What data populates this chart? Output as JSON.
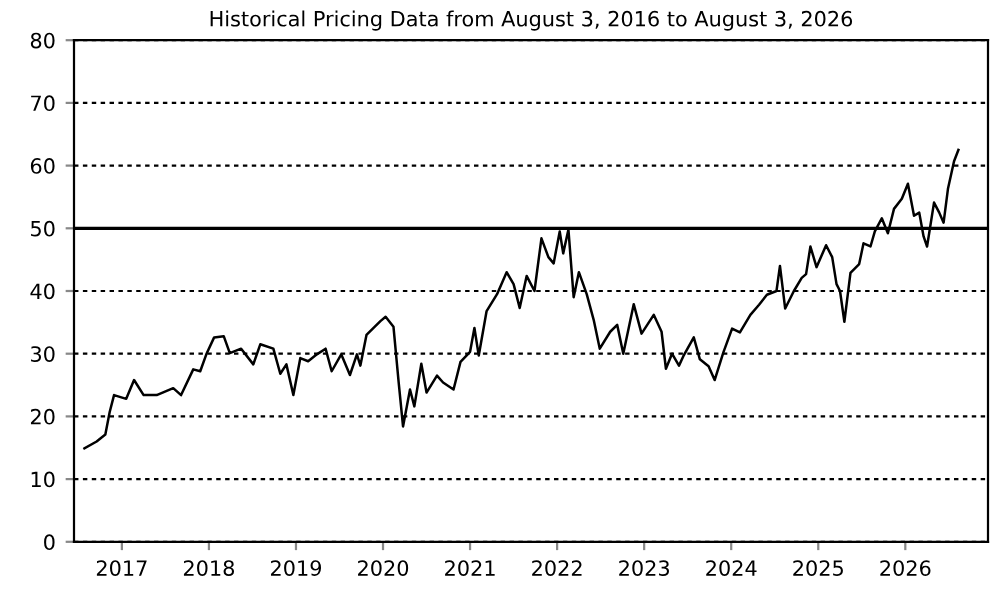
{
  "chart_data": {
    "type": "line",
    "title": "Historical Pricing Data from August 3, 2016 to August 3, 2026",
    "series": [
      {
        "color": "#000000",
        "x": [
          2016.57,
          2016.71,
          2016.81,
          2016.86,
          2016.91,
          2017.05,
          2017.14,
          2017.25,
          2017.4,
          2017.59,
          2017.68,
          2017.82,
          2017.9,
          2017.97,
          2018.06,
          2018.17,
          2018.24,
          2018.37,
          2018.51,
          2018.59,
          2018.74,
          2018.82,
          2018.89,
          2018.97,
          2019.05,
          2019.14,
          2019.24,
          2019.34,
          2019.41,
          2019.52,
          2019.62,
          2019.7,
          2019.74,
          2019.81,
          2019.97,
          2020.03,
          2020.12,
          2020.18,
          2020.23,
          2020.31,
          2020.36,
          2020.44,
          2020.5,
          2020.62,
          2020.69,
          2020.81,
          2020.89,
          2021.0,
          2021.05,
          2021.1,
          2021.19,
          2021.31,
          2021.42,
          2021.5,
          2021.57,
          2021.65,
          2021.74,
          2021.82,
          2021.9,
          2021.96,
          2022.03,
          2022.07,
          2022.13,
          2022.19,
          2022.25,
          2022.34,
          2022.42,
          2022.49,
          2022.61,
          2022.69,
          2022.76,
          2022.88,
          2022.97,
          2023.11,
          2023.2,
          2023.25,
          2023.32,
          2023.4,
          2023.45,
          2023.57,
          2023.64,
          2023.74,
          2023.81,
          2023.91,
          2024.01,
          2024.1,
          2024.22,
          2024.32,
          2024.41,
          2024.52,
          2024.56,
          2024.62,
          2024.72,
          2024.81,
          2024.86,
          2024.91,
          2024.98,
          2025.09,
          2025.16,
          2025.21,
          2025.25,
          2025.3,
          2025.37,
          2025.47,
          2025.52,
          2025.6,
          2025.65,
          2025.73,
          2025.8,
          2025.87,
          2025.96,
          2026.03,
          2026.1,
          2026.16,
          2026.21,
          2026.25,
          2026.33,
          2026.39,
          2026.44,
          2026.49,
          2026.56,
          2026.61
        ],
        "values": [
          14.9,
          16.0,
          17.1,
          20.7,
          23.4,
          22.8,
          25.8,
          23.4,
          23.4,
          24.5,
          23.4,
          27.5,
          27.2,
          29.9,
          32.6,
          32.8,
          30.1,
          30.8,
          28.3,
          31.5,
          30.8,
          26.8,
          28.3,
          23.4,
          29.3,
          28.8,
          29.9,
          30.8,
          27.2,
          29.9,
          26.6,
          29.9,
          28.1,
          33.0,
          35.2,
          35.9,
          34.3,
          25.4,
          18.4,
          24.3,
          21.6,
          28.4,
          23.8,
          26.5,
          25.4,
          24.3,
          28.7,
          30.3,
          34.1,
          29.7,
          36.8,
          39.5,
          43.0,
          41.1,
          37.3,
          42.4,
          40.0,
          48.4,
          45.4,
          44.4,
          49.5,
          46.0,
          49.8,
          39.0,
          43.0,
          39.5,
          35.4,
          30.8,
          33.5,
          34.6,
          30.0,
          37.9,
          33.2,
          36.2,
          33.5,
          27.6,
          30.0,
          28.1,
          29.6,
          32.6,
          29.1,
          28.0,
          25.8,
          30.2,
          34.0,
          33.4,
          36.2,
          37.8,
          39.4,
          40.0,
          44.0,
          37.2,
          40.0,
          42.1,
          42.7,
          47.1,
          43.8,
          47.3,
          45.4,
          41.1,
          40.0,
          35.1,
          42.9,
          44.3,
          47.6,
          47.1,
          49.5,
          51.6,
          49.2,
          53.1,
          54.7,
          57.1,
          52.0,
          52.5,
          48.7,
          47.1,
          54.1,
          52.5,
          50.9,
          56.3,
          60.7,
          62.5
        ]
      }
    ],
    "xlim": [
      2016.45,
      2026.95
    ],
    "xticks": [
      2017,
      2018,
      2019,
      2020,
      2021,
      2022,
      2023,
      2024,
      2025,
      2026
    ],
    "ylim": [
      0,
      80
    ],
    "yticks": [
      0,
      10,
      20,
      30,
      40,
      50,
      60,
      70,
      80
    ],
    "grid": "y",
    "line_style": "solid",
    "marker": "none",
    "ref_lines": [
      {
        "axis": "y",
        "value": 50,
        "color": "#000000",
        "line_style": "solid"
      }
    ]
  }
}
